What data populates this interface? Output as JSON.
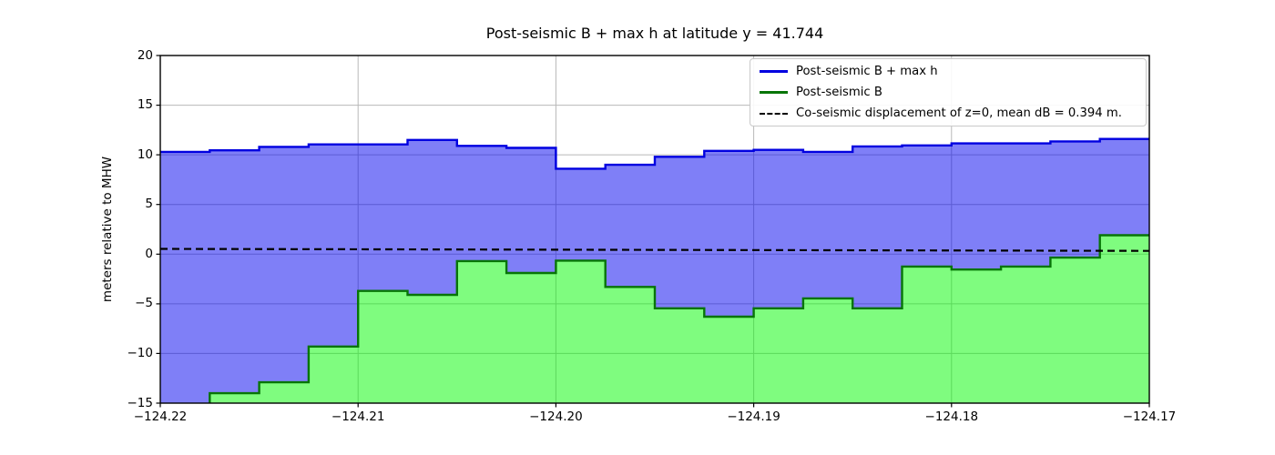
{
  "title": "Post-seismic B + max h at latitude y = 41.744",
  "ylabel": "meters relative to MHW",
  "legend": [
    {
      "label": "Post-seismic B + max h",
      "color": "#0000e0",
      "style": "solid"
    },
    {
      "label": "Post-seismic B",
      "color": "#077507",
      "style": "solid"
    },
    {
      "label": "Co-seismic displacement of z=0, mean dB = 0.394 m.",
      "color": "#000000",
      "style": "dashed"
    }
  ],
  "colors": {
    "blue_line": "#0000e0",
    "blue_fill": "rgba(0,0,240,0.5)",
    "green_line": "#077507",
    "green_fill": "rgba(0,250,0,0.5)",
    "dashed_line": "#000000",
    "grid": "#b8b8b8",
    "spine": "#000000",
    "background": "#ffffff"
  },
  "chart_data": {
    "type": "area",
    "subtype": "step-filled",
    "title": "Post-seismic B + max h at latitude y = 41.744",
    "xlabel": "",
    "ylabel": "meters relative to MHW",
    "xlim": [
      -124.22,
      -124.17
    ],
    "ylim": [
      -15,
      20
    ],
    "grid": true,
    "legend_position": "upper right",
    "x_edges": [
      -124.22,
      -124.2175,
      -124.215,
      -124.2125,
      -124.21,
      -124.2075,
      -124.205,
      -124.2025,
      -124.2,
      -124.1975,
      -124.195,
      -124.1925,
      -124.19,
      -124.1875,
      -124.185,
      -124.1825,
      -124.18,
      -124.1775,
      -124.175,
      -124.1725,
      -124.17
    ],
    "series": [
      {
        "name": "Post-seismic B + max h",
        "values": [
          10.3,
          10.45,
          10.8,
          11.05,
          11.05,
          11.5,
          10.9,
          10.7,
          8.6,
          9.0,
          9.8,
          10.4,
          10.5,
          10.3,
          10.85,
          10.95,
          11.15,
          11.15,
          11.35,
          11.6
        ]
      },
      {
        "name": "Post-seismic B",
        "values": [
          -15.6,
          -14.0,
          -12.9,
          -9.3,
          -3.7,
          -4.1,
          -0.7,
          -1.9,
          -0.65,
          -3.3,
          -5.45,
          -6.3,
          -5.45,
          -4.45,
          -5.45,
          -1.25,
          -1.55,
          -1.25,
          -0.35,
          1.9
        ]
      }
    ],
    "dashed_line": {
      "name": "Co-seismic displacement of z=0, mean dB = 0.394 m.",
      "x": [
        -124.22,
        -124.17
      ],
      "y": [
        0.53,
        0.33
      ],
      "mean_dB_m": 0.394
    },
    "xticks": {
      "values": [
        -124.22,
        -124.21,
        -124.2,
        -124.19,
        -124.18,
        -124.17
      ],
      "labels": [
        "−124.22",
        "−124.21",
        "−124.20",
        "−124.19",
        "−124.18",
        "−124.17"
      ]
    },
    "yticks": {
      "values": [
        20,
        15,
        10,
        5,
        0,
        -5,
        -10,
        -15
      ],
      "labels": [
        "20",
        "15",
        "10",
        "5",
        "0",
        "−5",
        "−10",
        "−15"
      ]
    }
  }
}
